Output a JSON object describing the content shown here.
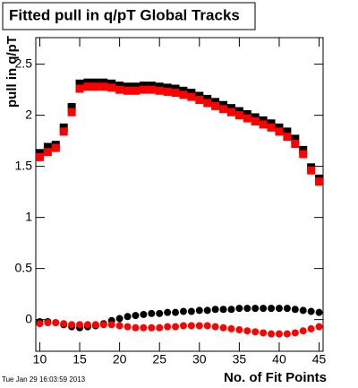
{
  "chart_data": {
    "type": "scatter",
    "title": "Fitted pull in q/pT  Global Tracks",
    "x_label": "No. of Fit Points",
    "y_label": "pull in q/pT",
    "timestamp": "Tue Jan 29 16:03:59 2013",
    "x": [
      10,
      11,
      12,
      13,
      14,
      15,
      16,
      17,
      18,
      19,
      20,
      21,
      22,
      23,
      24,
      25,
      26,
      27,
      28,
      29,
      30,
      31,
      32,
      33,
      34,
      35,
      36,
      37,
      38,
      39,
      40,
      41,
      42,
      43,
      44,
      45
    ],
    "xlim": [
      9.5,
      45.5
    ],
    "xticks": [
      10,
      15,
      20,
      25,
      30,
      35,
      40,
      45
    ],
    "ylim": [
      -0.31,
      2.76
    ],
    "yticks": [
      0,
      0.5,
      1,
      1.5,
      2,
      2.5
    ],
    "series": [
      {
        "color": "#000000",
        "marker": "square",
        "values": [
          1.63,
          1.69,
          1.71,
          1.88,
          2.08,
          2.31,
          2.32,
          2.32,
          2.32,
          2.31,
          2.29,
          2.28,
          2.28,
          2.29,
          2.29,
          2.28,
          2.27,
          2.26,
          2.24,
          2.22,
          2.19,
          2.16,
          2.13,
          2.1,
          2.07,
          2.04,
          2.01,
          1.98,
          1.95,
          1.92,
          1.88,
          1.84,
          1.77,
          1.66,
          1.49,
          1.38
        ]
      },
      {
        "color": "#ff0000",
        "marker": "square",
        "values": [
          1.59,
          1.64,
          1.68,
          1.84,
          2.03,
          2.26,
          2.28,
          2.28,
          2.28,
          2.27,
          2.25,
          2.24,
          2.24,
          2.25,
          2.25,
          2.24,
          2.23,
          2.22,
          2.2,
          2.18,
          2.15,
          2.12,
          2.09,
          2.06,
          2.03,
          2.0,
          1.97,
          1.94,
          1.91,
          1.88,
          1.84,
          1.79,
          1.72,
          1.62,
          1.46,
          1.35
        ]
      },
      {
        "color": "#000000",
        "marker": "circle",
        "values": [
          -0.02,
          -0.02,
          -0.03,
          -0.05,
          -0.07,
          -0.08,
          -0.07,
          -0.06,
          -0.04,
          -0.01,
          0.01,
          0.03,
          0.04,
          0.05,
          0.06,
          0.06,
          0.07,
          0.07,
          0.08,
          0.08,
          0.09,
          0.09,
          0.1,
          0.1,
          0.1,
          0.11,
          0.11,
          0.11,
          0.11,
          0.11,
          0.11,
          0.11,
          0.1,
          0.09,
          0.08,
          0.07
        ]
      },
      {
        "color": "#ff0000",
        "marker": "circle",
        "values": [
          -0.04,
          -0.03,
          -0.03,
          -0.04,
          -0.05,
          -0.05,
          -0.05,
          -0.05,
          -0.05,
          -0.05,
          -0.06,
          -0.07,
          -0.08,
          -0.08,
          -0.08,
          -0.08,
          -0.07,
          -0.07,
          -0.06,
          -0.06,
          -0.06,
          -0.06,
          -0.07,
          -0.08,
          -0.09,
          -0.1,
          -0.11,
          -0.12,
          -0.13,
          -0.14,
          -0.14,
          -0.14,
          -0.13,
          -0.11,
          -0.09,
          -0.07
        ]
      }
    ]
  }
}
